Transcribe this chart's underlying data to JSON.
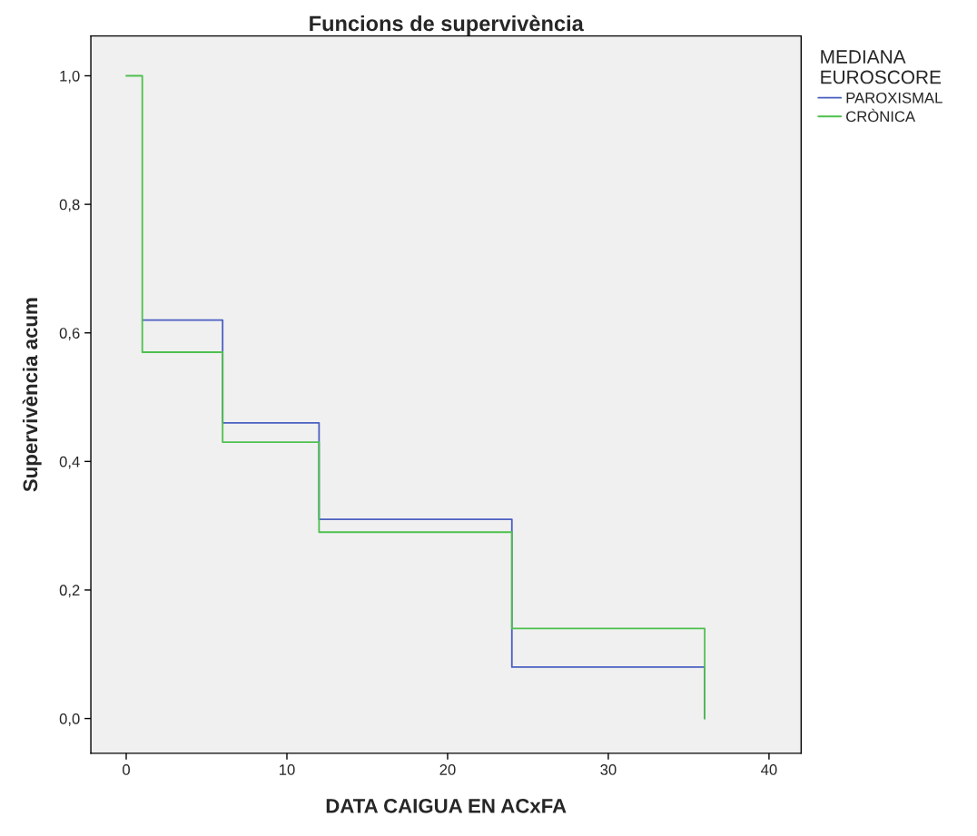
{
  "chart_data": {
    "type": "step",
    "title": "Funcions de supervivència",
    "xlabel": "DATA CAIGUA EN ACxFA",
    "ylabel": "Supervivència acum",
    "legend_title": "MEDIANA\nEUROSCORE",
    "series": [
      {
        "name": "PAROXISMAL",
        "color": "#4a5fc1",
        "x": [
          1,
          6,
          12,
          24,
          36
        ],
        "values": [
          0.62,
          0.46,
          0.31,
          0.08,
          0.0
        ]
      },
      {
        "name": "CRÒNICA",
        "color": "#4ec04e",
        "x": [
          0,
          1,
          6,
          12,
          24,
          36
        ],
        "values": [
          1.0,
          0.57,
          0.43,
          0.29,
          0.14,
          0.0
        ]
      }
    ],
    "xlim": [
      -2.2,
      42
    ],
    "ylim": [
      -0.054,
      1.062
    ],
    "xticks": [
      0,
      10,
      20,
      30,
      40
    ],
    "yticks": [
      {
        "value": 0.0,
        "label": "0,0"
      },
      {
        "value": 0.2,
        "label": "0,2"
      },
      {
        "value": 0.4,
        "label": "0,4"
      },
      {
        "value": 0.6,
        "label": "0,6"
      },
      {
        "value": 0.8,
        "label": "0,8"
      },
      {
        "value": 1.0,
        "label": "1,0"
      }
    ],
    "legend": "top right",
    "grid": false,
    "marker": "none",
    "line_style": "solid"
  }
}
